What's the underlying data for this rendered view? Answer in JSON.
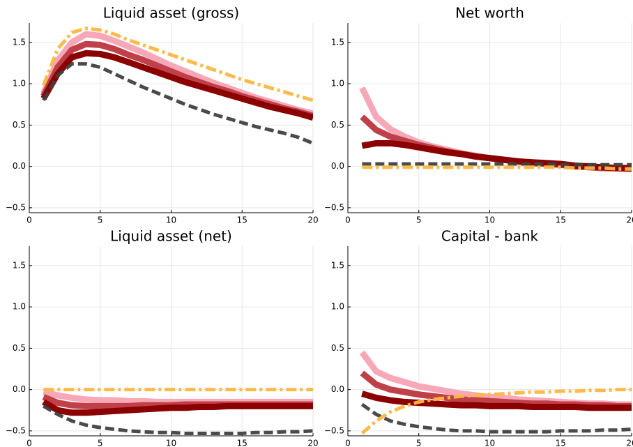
{
  "chart_data": [
    {
      "type": "line",
      "title": "Liquid asset (gross)",
      "x": [
        1,
        2,
        3,
        4,
        5,
        6,
        7,
        8,
        9,
        10,
        11,
        12,
        13,
        14,
        15,
        16,
        17,
        18,
        19,
        20
      ],
      "xlim": [
        0,
        20
      ],
      "xticks": [
        0,
        5,
        10,
        15,
        20
      ],
      "ylim": [
        -0.56,
        1.735
      ],
      "yticks": [
        {
          "value": -0.5,
          "label": "−0.5"
        },
        {
          "value": 0,
          "label": "0.0"
        },
        {
          "value": 0.5,
          "label": "0.5"
        },
        {
          "value": 1,
          "label": "1.0"
        },
        {
          "value": 1.5,
          "label": "1.5"
        }
      ],
      "grid": true,
      "series": [
        {
          "color": "#f7a8b8",
          "style": "solid",
          "values": [
            0.88,
            1.28,
            1.5,
            1.6,
            1.58,
            1.52,
            1.45,
            1.38,
            1.3,
            1.22,
            1.15,
            1.08,
            1.01,
            0.95,
            0.89,
            0.83,
            0.78,
            0.73,
            0.68,
            0.64
          ]
        },
        {
          "color": "#c0404a",
          "style": "solid",
          "values": [
            0.85,
            1.2,
            1.41,
            1.48,
            1.47,
            1.42,
            1.35,
            1.29,
            1.22,
            1.15,
            1.08,
            1.02,
            0.96,
            0.91,
            0.85,
            0.8,
            0.75,
            0.7,
            0.66,
            0.61
          ]
        },
        {
          "color": "#8b0000",
          "style": "solid",
          "values": [
            0.82,
            1.12,
            1.32,
            1.37,
            1.36,
            1.32,
            1.26,
            1.2,
            1.14,
            1.08,
            1.02,
            0.97,
            0.92,
            0.87,
            0.82,
            0.77,
            0.72,
            0.68,
            0.64,
            0.59
          ]
        },
        {
          "color": "#404040",
          "style": "dash",
          "values": [
            0.8,
            1.1,
            1.24,
            1.24,
            1.2,
            1.12,
            1.04,
            0.96,
            0.89,
            0.82,
            0.75,
            0.69,
            0.63,
            0.58,
            0.53,
            0.48,
            0.44,
            0.4,
            0.35,
            0.28
          ]
        },
        {
          "color": "#fbb741",
          "style": "dashdot",
          "values": [
            0.98,
            1.42,
            1.62,
            1.67,
            1.65,
            1.6,
            1.53,
            1.47,
            1.41,
            1.35,
            1.29,
            1.23,
            1.17,
            1.11,
            1.05,
            1.0,
            0.95,
            0.9,
            0.85,
            0.8
          ]
        }
      ]
    },
    {
      "type": "line",
      "title": "Net worth",
      "x": [
        1,
        2,
        3,
        4,
        5,
        6,
        7,
        8,
        9,
        10,
        11,
        12,
        13,
        14,
        15,
        16,
        17,
        18,
        19,
        20
      ],
      "xlim": [
        0,
        20
      ],
      "xticks": [
        0,
        5,
        10,
        15,
        20
      ],
      "ylim": [
        -0.56,
        1.735
      ],
      "yticks": [
        {
          "value": -0.5,
          "label": "−0.5"
        },
        {
          "value": 0,
          "label": "0.0"
        },
        {
          "value": 0.5,
          "label": "0.5"
        },
        {
          "value": 1,
          "label": "1.0"
        },
        {
          "value": 1.5,
          "label": "1.5"
        }
      ],
      "grid": true,
      "series": [
        {
          "color": "#f7a8b8",
          "style": "solid",
          "values": [
            0.95,
            0.6,
            0.45,
            0.36,
            0.29,
            0.24,
            0.2,
            0.16,
            0.13,
            0.1,
            0.08,
            0.06,
            0.04,
            0.03,
            0.02,
            0.0,
            -0.01,
            -0.02,
            -0.03,
            -0.03
          ]
        },
        {
          "color": "#c0404a",
          "style": "solid",
          "values": [
            0.6,
            0.44,
            0.36,
            0.31,
            0.26,
            0.22,
            0.18,
            0.15,
            0.12,
            0.1,
            0.08,
            0.06,
            0.04,
            0.03,
            0.02,
            0.0,
            -0.01,
            -0.02,
            -0.02,
            -0.03
          ]
        },
        {
          "color": "#8b0000",
          "style": "solid",
          "values": [
            0.25,
            0.28,
            0.28,
            0.26,
            0.23,
            0.2,
            0.17,
            0.15,
            0.12,
            0.1,
            0.08,
            0.06,
            0.05,
            0.04,
            0.03,
            0.01,
            0.0,
            -0.01,
            -0.02,
            -0.02
          ]
        },
        {
          "color": "#404040",
          "style": "dash",
          "values": [
            0.03,
            0.03,
            0.03,
            0.03,
            0.03,
            0.03,
            0.03,
            0.03,
            0.03,
            0.03,
            0.03,
            0.03,
            0.03,
            0.03,
            0.02,
            0.02,
            0.02,
            0.02,
            0.02,
            0.02
          ]
        },
        {
          "color": "#fbb741",
          "style": "dashdot",
          "values": [
            -0.01,
            -0.01,
            -0.01,
            -0.01,
            -0.01,
            -0.01,
            -0.01,
            -0.01,
            -0.01,
            -0.01,
            -0.01,
            -0.01,
            -0.01,
            -0.01,
            -0.01,
            -0.02,
            -0.02,
            -0.02,
            -0.03,
            -0.03
          ]
        }
      ]
    },
    {
      "type": "line",
      "title": "Liquid asset (net)",
      "x": [
        1,
        2,
        3,
        4,
        5,
        6,
        7,
        8,
        9,
        10,
        11,
        12,
        13,
        14,
        15,
        16,
        17,
        18,
        19,
        20
      ],
      "xlim": [
        0,
        20
      ],
      "xticks": [
        0,
        5,
        10,
        15,
        20
      ],
      "ylim": [
        -0.56,
        1.735
      ],
      "yticks": [
        {
          "value": -0.5,
          "label": "−0.5"
        },
        {
          "value": 0,
          "label": "0.0"
        },
        {
          "value": 0.5,
          "label": "0.5"
        },
        {
          "value": 1,
          "label": "1.0"
        },
        {
          "value": 1.5,
          "label": "1.5"
        }
      ],
      "grid": true,
      "series": [
        {
          "color": "#f7a8b8",
          "style": "solid",
          "values": [
            -0.03,
            -0.07,
            -0.1,
            -0.12,
            -0.13,
            -0.13,
            -0.14,
            -0.14,
            -0.15,
            -0.15,
            -0.15,
            -0.15,
            -0.15,
            -0.15,
            -0.15,
            -0.15,
            -0.15,
            -0.15,
            -0.15,
            -0.15
          ]
        },
        {
          "color": "#c0404a",
          "style": "solid",
          "values": [
            -0.09,
            -0.16,
            -0.19,
            -0.2,
            -0.2,
            -0.2,
            -0.2,
            -0.19,
            -0.19,
            -0.19,
            -0.18,
            -0.18,
            -0.18,
            -0.18,
            -0.18,
            -0.18,
            -0.18,
            -0.18,
            -0.18,
            -0.18
          ]
        },
        {
          "color": "#8b0000",
          "style": "solid",
          "values": [
            -0.15,
            -0.25,
            -0.28,
            -0.28,
            -0.27,
            -0.26,
            -0.25,
            -0.24,
            -0.23,
            -0.22,
            -0.22,
            -0.21,
            -0.21,
            -0.2,
            -0.2,
            -0.2,
            -0.2,
            -0.2,
            -0.2,
            -0.2
          ]
        },
        {
          "color": "#404040",
          "style": "dash",
          "values": [
            -0.2,
            -0.3,
            -0.38,
            -0.43,
            -0.46,
            -0.48,
            -0.5,
            -0.51,
            -0.52,
            -0.52,
            -0.53,
            -0.53,
            -0.53,
            -0.53,
            -0.53,
            -0.52,
            -0.52,
            -0.51,
            -0.51,
            -0.5
          ]
        },
        {
          "color": "#fbb741",
          "style": "dashdot",
          "values": [
            0,
            0,
            0,
            0,
            0,
            0,
            0,
            0,
            0,
            0,
            0,
            0,
            0,
            0,
            0,
            0,
            0,
            0,
            0,
            0
          ]
        }
      ]
    },
    {
      "type": "line",
      "title": "Capital - bank",
      "x": [
        1,
        2,
        3,
        4,
        5,
        6,
        7,
        8,
        9,
        10,
        11,
        12,
        13,
        14,
        15,
        16,
        17,
        18,
        19,
        20
      ],
      "xlim": [
        0,
        20
      ],
      "xticks": [
        0,
        5,
        10,
        15,
        20
      ],
      "ylim": [
        -0.56,
        1.735
      ],
      "yticks": [
        {
          "value": -0.5,
          "label": "−0.5"
        },
        {
          "value": 0,
          "label": "0.0"
        },
        {
          "value": 0.5,
          "label": "0.5"
        },
        {
          "value": 1,
          "label": "1.0"
        },
        {
          "value": 1.5,
          "label": "1.5"
        }
      ],
      "grid": true,
      "series": [
        {
          "color": "#f7a8b8",
          "style": "solid",
          "values": [
            0.45,
            0.22,
            0.14,
            0.09,
            0.04,
            0.01,
            -0.02,
            -0.05,
            -0.07,
            -0.09,
            -0.1,
            -0.12,
            -0.13,
            -0.14,
            -0.15,
            -0.16,
            -0.17,
            -0.17,
            -0.18,
            -0.18
          ]
        },
        {
          "color": "#c0404a",
          "style": "solid",
          "values": [
            0.2,
            0.06,
            0.0,
            -0.03,
            -0.06,
            -0.08,
            -0.1,
            -0.12,
            -0.13,
            -0.14,
            -0.15,
            -0.16,
            -0.17,
            -0.17,
            -0.18,
            -0.18,
            -0.19,
            -0.19,
            -0.2,
            -0.2
          ]
        },
        {
          "color": "#8b0000",
          "style": "solid",
          "values": [
            -0.05,
            -0.1,
            -0.13,
            -0.15,
            -0.16,
            -0.17,
            -0.18,
            -0.19,
            -0.19,
            -0.2,
            -0.2,
            -0.2,
            -0.21,
            -0.21,
            -0.21,
            -0.21,
            -0.22,
            -0.22,
            -0.22,
            -0.22
          ]
        },
        {
          "color": "#404040",
          "style": "dash",
          "values": [
            -0.18,
            -0.3,
            -0.38,
            -0.42,
            -0.45,
            -0.47,
            -0.49,
            -0.5,
            -0.5,
            -0.51,
            -0.51,
            -0.51,
            -0.51,
            -0.51,
            -0.5,
            -0.5,
            -0.5,
            -0.49,
            -0.49,
            -0.48
          ]
        },
        {
          "color": "#fbb741",
          "style": "dashdot",
          "values": [
            -0.53,
            -0.38,
            -0.27,
            -0.2,
            -0.15,
            -0.12,
            -0.1,
            -0.08,
            -0.07,
            -0.06,
            -0.05,
            -0.04,
            -0.03,
            -0.03,
            -0.02,
            -0.02,
            -0.01,
            -0.01,
            0,
            0
          ]
        }
      ]
    }
  ]
}
